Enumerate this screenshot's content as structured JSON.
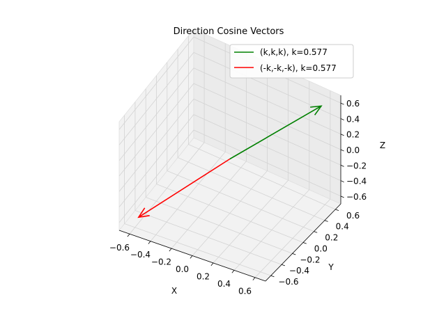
{
  "chart_data": {
    "type": "line",
    "projection": "3d",
    "title": "Direction Cosine Vectors",
    "xlabel": "X",
    "ylabel": "Y",
    "zlabel": "Z",
    "xlim": [
      -0.7,
      0.7
    ],
    "ylim": [
      -0.7,
      0.7
    ],
    "zlim": [
      -0.7,
      0.7
    ],
    "x_ticks": [
      "−0.6",
      "−0.4",
      "−0.2",
      "0.0",
      "0.2",
      "0.4",
      "0.6"
    ],
    "y_ticks": [
      "−0.6",
      "−0.4",
      "−0.2",
      "0.0",
      "0.2",
      "0.4",
      "0.6"
    ],
    "z_ticks": [
      "−0.6",
      "−0.4",
      "−0.2",
      "0.0",
      "0.2",
      "0.4",
      "0.6"
    ],
    "grid": true,
    "legend_position": "top-right",
    "series": [
      {
        "name": "(k,k,k), k=0.577",
        "color": "#008000",
        "start": [
          0,
          0,
          0
        ],
        "end": [
          0.577,
          0.577,
          0.577
        ]
      },
      {
        "name": "(-k,-k,-k), k=0.577",
        "color": "#ff0000",
        "start": [
          0,
          0,
          0
        ],
        "end": [
          -0.577,
          -0.577,
          -0.577
        ]
      }
    ]
  }
}
